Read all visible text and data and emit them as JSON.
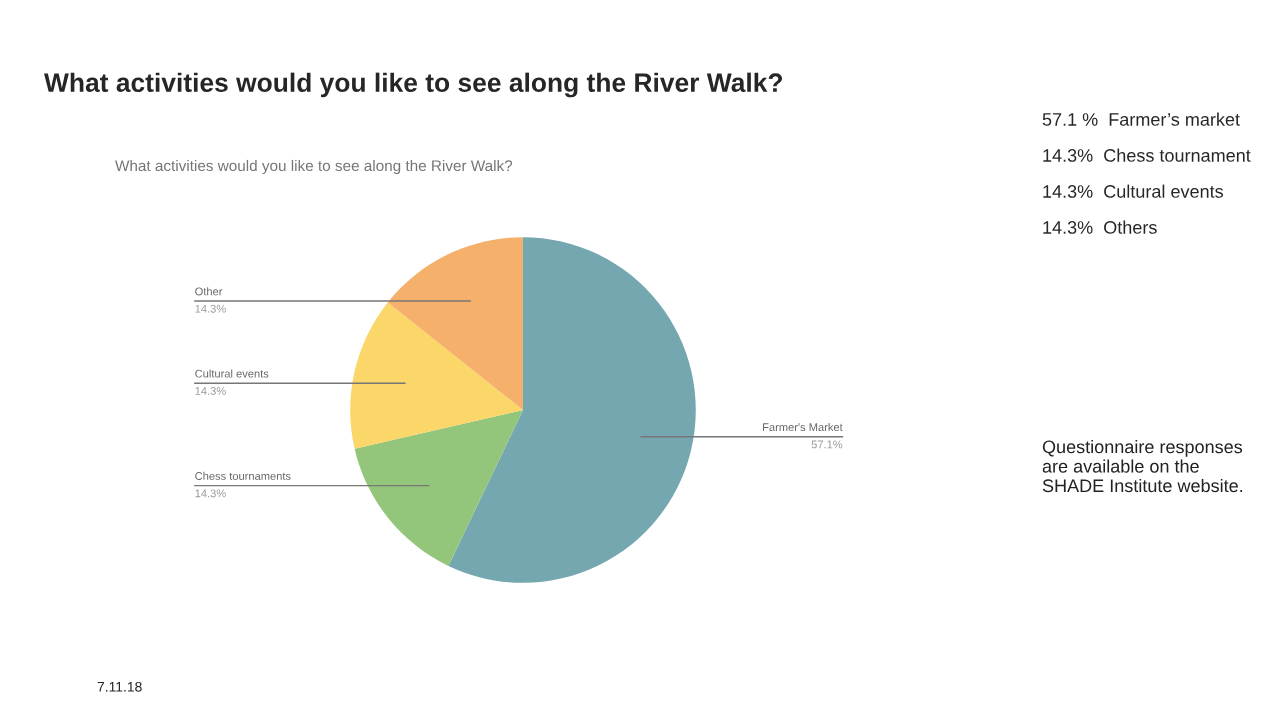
{
  "chart_data": {
    "type": "pie",
    "title": "What activities would you like to see along the River Walk?",
    "subtitle": "What activities would you like to see along the River Walk?",
    "categories": [
      "Farmer's Market",
      "Chess tournaments",
      "Cultural events",
      "Other"
    ],
    "values": [
      57.1,
      14.3,
      14.3,
      14.3
    ],
    "colors": [
      "#75a7b0",
      "#93c57a",
      "#fbd668",
      "#f5b06b"
    ],
    "value_labels": [
      "57.1%",
      "14.3%",
      "14.3%",
      "14.3%"
    ],
    "legend": false,
    "annotations": [
      "57.1 %  Farmer’s market",
      "14.3%  Chess tournament",
      "14.3%  Cultural events",
      "14.3%  Others",
      "Questionnaire responses are available on the SHADE Institute website.",
      "7.11.18"
    ]
  }
}
